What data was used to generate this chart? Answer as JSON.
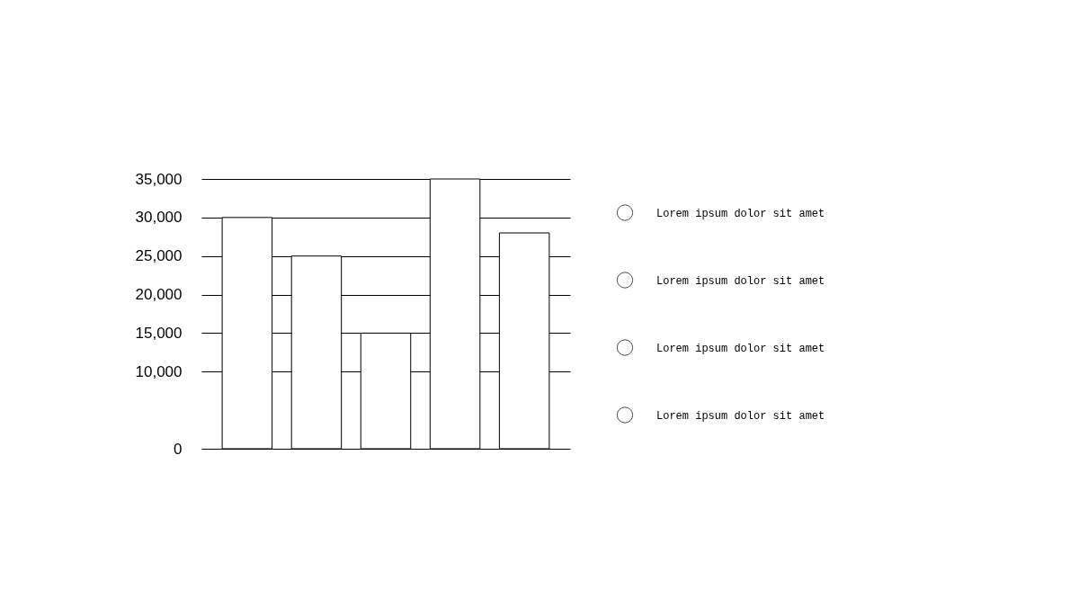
{
  "chart_data": {
    "type": "bar",
    "categories": [
      null,
      null,
      null,
      null,
      null
    ],
    "values": [
      30000,
      25000,
      15000,
      35000,
      28000
    ],
    "color": "#ffffff",
    "ylim": [
      0,
      35000
    ],
    "yticks": [
      0,
      {
        "value": 10000,
        "label": "10,000"
      },
      {
        "value": 15000,
        "label": "15,000"
      },
      {
        "value": 20000,
        "label": "20,000"
      },
      {
        "value": 25000,
        "label": "25,000"
      },
      {
        "value": 30000,
        "label": "30,000"
      },
      {
        "value": 35000,
        "label": "35,000"
      }
    ],
    "grid": "y",
    "tick_labels": "y",
    "annotations": [
      "Lorem ipsum dolor sit amet",
      "Lorem ipsum dolor sit amet",
      "Lorem ipsum dolor sit amet",
      "Lorem ipsum dolor sit amet"
    ]
  }
}
